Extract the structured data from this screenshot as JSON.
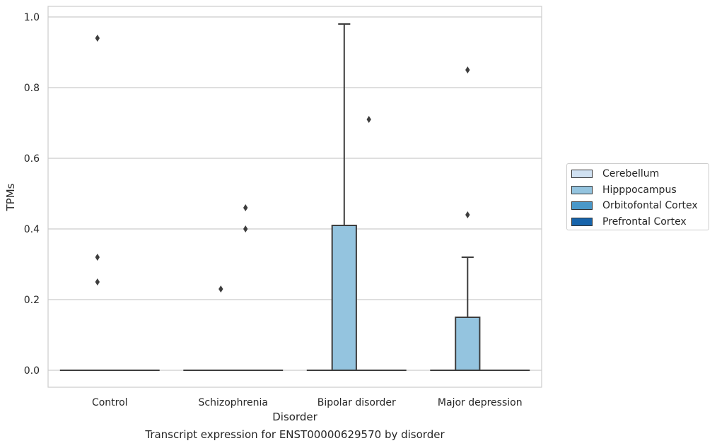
{
  "chart_data": {
    "type": "box",
    "caption": "Transcript expression for ENST00000629570 by disorder",
    "xlabel": "Disorder",
    "ylabel": "TPMs",
    "ylim": [
      -0.045,
      1.03
    ],
    "yticks": [
      0.0,
      0.2,
      0.4,
      0.6,
      0.8,
      1.0
    ],
    "ytick_labels": [
      "0.0",
      "0.2",
      "0.4",
      "0.6",
      "0.8",
      "1.0"
    ],
    "grid": true,
    "legend_position": "right",
    "categories": [
      "Control",
      "Schizophrenia",
      "Bipolar disorder",
      "Major depression"
    ],
    "series": [
      {
        "name": "Cerebellum",
        "color": "#d0e1f2",
        "boxes": [
          {
            "q1": 0,
            "median": 0,
            "q3": 0,
            "whisker_low": 0,
            "whisker_high": 0,
            "outliers": []
          },
          {
            "q1": 0,
            "median": 0,
            "q3": 0,
            "whisker_low": 0,
            "whisker_high": 0,
            "outliers": []
          },
          {
            "q1": 0,
            "median": 0,
            "q3": 0,
            "whisker_low": 0,
            "whisker_high": 0,
            "outliers": []
          },
          {
            "q1": 0,
            "median": 0,
            "q3": 0,
            "whisker_low": 0,
            "whisker_high": 0,
            "outliers": []
          }
        ]
      },
      {
        "name": "Hipppocampus",
        "color": "#94c4df",
        "boxes": [
          {
            "q1": 0,
            "median": 0,
            "q3": 0,
            "whisker_low": 0,
            "whisker_high": 0,
            "outliers": [
              0.94,
              0.32,
              0.25
            ]
          },
          {
            "q1": 0,
            "median": 0,
            "q3": 0,
            "whisker_low": 0,
            "whisker_high": 0,
            "outliers": [
              0.23
            ]
          },
          {
            "q1": 0,
            "median": 0,
            "q3": 0.41,
            "whisker_low": 0,
            "whisker_high": 0.98,
            "outliers": []
          },
          {
            "q1": 0,
            "median": 0,
            "q3": 0.15,
            "whisker_low": 0,
            "whisker_high": 0.32,
            "outliers": [
              0.85,
              0.44
            ]
          }
        ]
      },
      {
        "name": "Orbitofontal Cortex",
        "color": "#4a98c9",
        "boxes": [
          {
            "q1": 0,
            "median": 0,
            "q3": 0,
            "whisker_low": 0,
            "whisker_high": 0,
            "outliers": []
          },
          {
            "q1": 0,
            "median": 0,
            "q3": 0,
            "whisker_low": 0,
            "whisker_high": 0,
            "outliers": [
              0.46,
              0.4
            ]
          },
          {
            "q1": 0,
            "median": 0,
            "q3": 0,
            "whisker_low": 0,
            "whisker_high": 0,
            "outliers": [
              0.71
            ]
          },
          {
            "q1": 0,
            "median": 0,
            "q3": 0,
            "whisker_low": 0,
            "whisker_high": 0,
            "outliers": []
          }
        ]
      },
      {
        "name": "Prefrontal Cortex",
        "color": "#1764ab",
        "boxes": [
          {
            "q1": 0,
            "median": 0,
            "q3": 0,
            "whisker_low": 0,
            "whisker_high": 0,
            "outliers": []
          },
          {
            "q1": 0,
            "median": 0,
            "q3": 0,
            "whisker_low": 0,
            "whisker_high": 0,
            "outliers": []
          },
          {
            "q1": 0,
            "median": 0,
            "q3": 0,
            "whisker_low": 0,
            "whisker_high": 0,
            "outliers": []
          },
          {
            "q1": 0,
            "median": 0,
            "q3": 0,
            "whisker_low": 0,
            "whisker_high": 0,
            "outliers": []
          }
        ]
      }
    ]
  }
}
